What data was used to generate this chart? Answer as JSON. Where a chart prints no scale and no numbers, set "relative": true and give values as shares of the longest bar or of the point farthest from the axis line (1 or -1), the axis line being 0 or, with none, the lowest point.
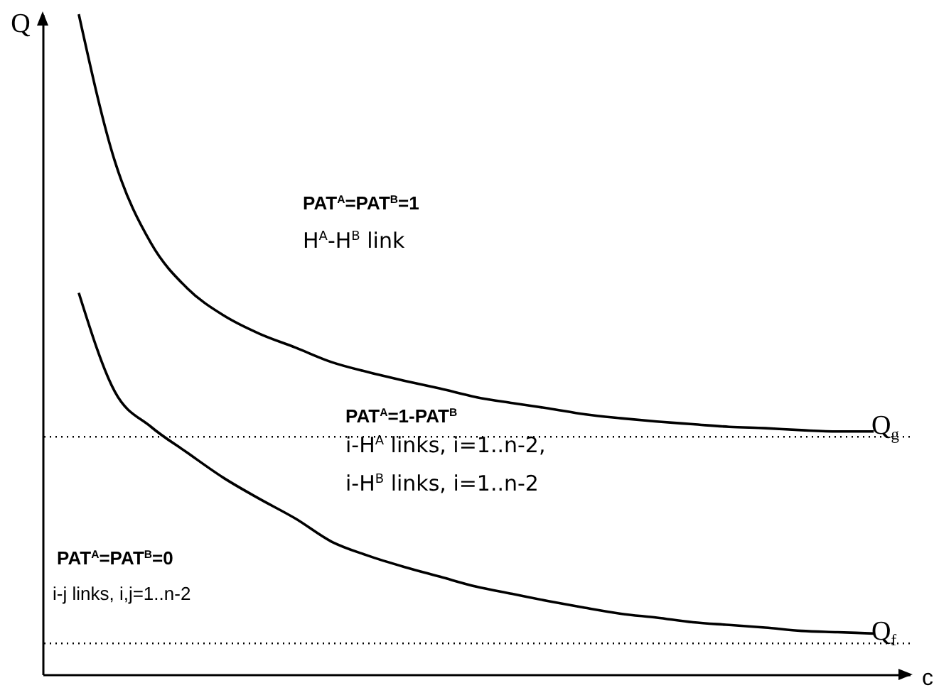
{
  "chart_data": {
    "type": "line",
    "relative": true,
    "xlabel": "c",
    "ylabel": "Q",
    "categories": [
      null,
      null,
      null,
      null,
      null,
      null,
      null,
      null,
      null,
      null,
      null,
      null,
      null,
      null,
      null,
      null,
      null,
      null,
      null,
      null,
      null,
      null,
      null
    ],
    "series": [
      {
        "color": "#000000",
        "values": [
          1,
          0.777,
          0.653,
          0.585,
          0.544,
          0.516,
          0.495,
          0.473,
          0.458,
          0.445,
          0.433,
          0.42,
          0.411,
          0.403,
          0.394,
          0.388,
          0.383,
          0.379,
          0.375,
          0.373,
          0.37,
          0.368,
          0.368
        ]
      },
      {
        "color": "#000000",
        "values": [
          0.578,
          0.428,
          0.375,
          0.336,
          0.298,
          0.266,
          0.236,
          0.201,
          0.18,
          0.163,
          0.148,
          0.133,
          0.122,
          0.111,
          0.101,
          0.092,
          0.086,
          0.079,
          0.075,
          0.071,
          0.066,
          0.064,
          0.062
        ]
      }
    ],
    "ref_lines": [
      {
        "axis": "y",
        "value": 0.36,
        "label": "Q$_{g}$",
        "line_style": "dotted",
        "color": "#000000"
      },
      {
        "axis": "y",
        "value": 0.047,
        "label": "Q$_{f}$",
        "line_style": "dotted",
        "color": "#000000"
      }
    ],
    "annotations": [
      "PAT$^{A}$=PAT$^{B}$=1",
      "H$^{A}$-H$^{B}$ link",
      "PAT$^{A}$=1-PAT$^{B}$",
      "i-H$^{A}$ links, i=1..n-2,",
      "i-H$^{B}$ links, i=1..n-2",
      "PAT$^{A}$=PAT$^{B}$=0",
      "i-j links, i,j=1..n-2"
    ],
    "grid": false
  }
}
